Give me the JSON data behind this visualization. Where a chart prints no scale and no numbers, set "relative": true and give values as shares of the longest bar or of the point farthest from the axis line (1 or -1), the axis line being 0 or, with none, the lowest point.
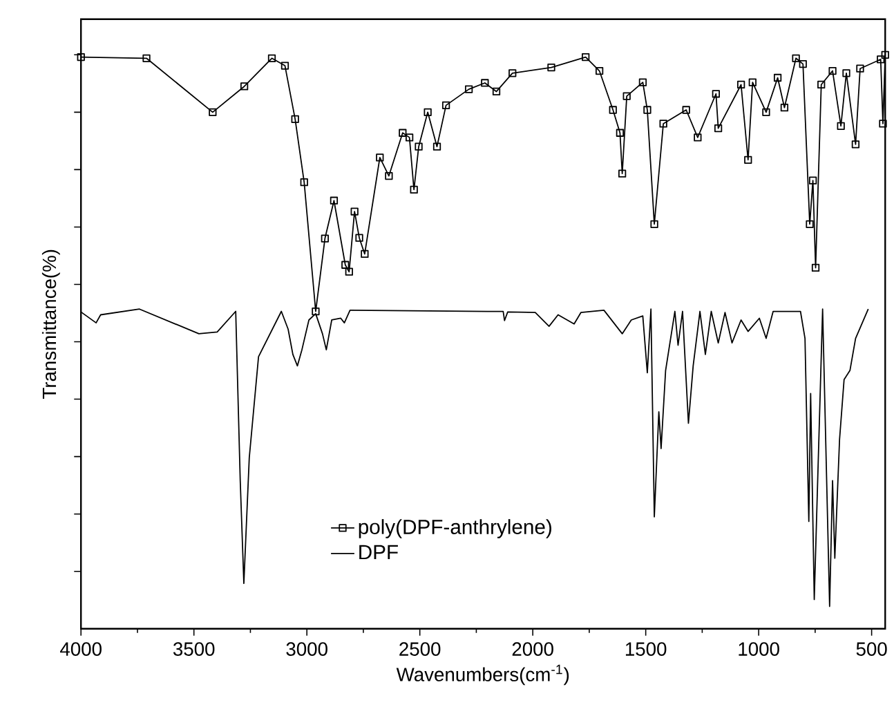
{
  "chart_data": {
    "type": "line",
    "xlabel": "Wavenumbers(cm$^{-1}$)",
    "ylabel": "Transmittance(%)",
    "relative": true,
    "tick_labels": "x",
    "legend": "bottom",
    "xlim": [
      4000,
      440
    ],
    "xticks": [
      4000,
      3500,
      3000,
      2500,
      2000,
      1500,
      1000,
      500
    ],
    "series": [
      {
        "name": "poly(DPF-anthrylene)",
        "color": "#000000",
        "marker": "square",
        "x": [
          4000,
          3710,
          3417,
          3277,
          3155,
          3097,
          3052,
          3012,
          2961,
          2920,
          2880,
          2830,
          2813,
          2789,
          2768,
          2744,
          2677,
          2637,
          2576,
          2546,
          2526,
          2505,
          2465,
          2424,
          2384,
          2283,
          2212,
          2161,
          2090,
          1918,
          1766,
          1705,
          1645,
          1614,
          1604,
          1584,
          1513,
          1493,
          1462,
          1422,
          1321,
          1270,
          1189,
          1179,
          1078,
          1047,
          1027,
          967,
          916,
          886,
          835,
          804,
          774,
          760,
          748,
          723,
          673,
          636,
          612,
          571,
          551,
          460,
          450,
          440
        ],
        "values": [
          0.996,
          0.994,
          0.9,
          0.945,
          0.994,
          0.981,
          0.888,
          0.778,
          0.553,
          0.68,
          0.746,
          0.634,
          0.622,
          0.727,
          0.681,
          0.653,
          0.821,
          0.789,
          0.864,
          0.856,
          0.765,
          0.84,
          0.9,
          0.84,
          0.912,
          0.94,
          0.951,
          0.936,
          0.968,
          0.978,
          0.996,
          0.972,
          0.904,
          0.864,
          0.793,
          0.928,
          0.952,
          0.904,
          0.705,
          0.88,
          0.904,
          0.856,
          0.932,
          0.872,
          0.948,
          0.817,
          0.952,
          0.9,
          0.96,
          0.908,
          0.994,
          0.984,
          0.705,
          0.781,
          0.629,
          0.948,
          0.972,
          0.876,
          0.968,
          0.844,
          0.976,
          0.992,
          0.88,
          1.0
        ]
      },
      {
        "name": "DPF",
        "color": "#000000",
        "marker": "none",
        "x": [
          4000,
          3933,
          3913,
          3741,
          3478,
          3397,
          3315,
          3295,
          3279,
          3255,
          3214,
          3113,
          3083,
          3062,
          3042,
          3022,
          2991,
          2961,
          2931,
          2914,
          2890,
          2850,
          2834,
          2809,
          2202,
          2131,
          2125,
          2111,
          1989,
          1928,
          1888,
          1817,
          1787,
          1685,
          1604,
          1564,
          1513,
          1493,
          1477,
          1462,
          1442,
          1432,
          1412,
          1371,
          1357,
          1337,
          1311,
          1290,
          1260,
          1236,
          1210,
          1179,
          1149,
          1118,
          1078,
          1047,
          997,
          967,
          936,
          815,
          795,
          778,
          770,
          754,
          717,
          686,
          673,
          663,
          642,
          622,
          596,
          571,
          515
        ],
        "values": [
          0.552,
          0.533,
          0.547,
          0.557,
          0.514,
          0.517,
          0.553,
          0.258,
          0.079,
          0.298,
          0.474,
          0.553,
          0.522,
          0.478,
          0.458,
          0.486,
          0.538,
          0.549,
          0.514,
          0.486,
          0.538,
          0.541,
          0.533,
          0.555,
          0.553,
          0.553,
          0.537,
          0.552,
          0.551,
          0.527,
          0.547,
          0.531,
          0.551,
          0.555,
          0.514,
          0.538,
          0.545,
          0.446,
          0.557,
          0.195,
          0.378,
          0.314,
          0.45,
          0.553,
          0.494,
          0.553,
          0.358,
          0.458,
          0.553,
          0.478,
          0.553,
          0.498,
          0.551,
          0.498,
          0.538,
          0.518,
          0.541,
          0.506,
          0.553,
          0.553,
          0.506,
          0.187,
          0.41,
          0.051,
          0.557,
          0.039,
          0.258,
          0.123,
          0.33,
          0.434,
          0.45,
          0.506,
          0.557
        ]
      }
    ]
  }
}
